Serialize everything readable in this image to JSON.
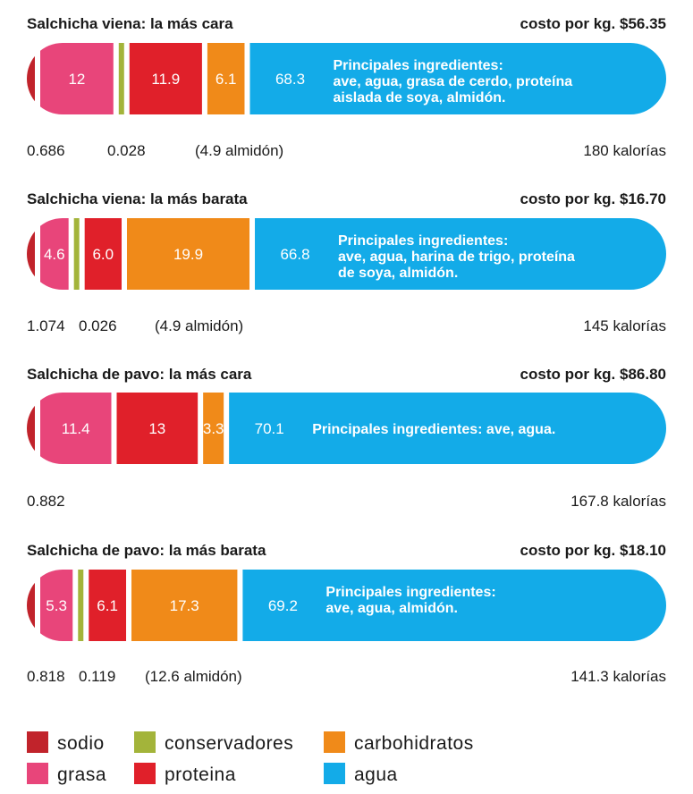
{
  "chart_data": {
    "type": "bar",
    "colors": {
      "sodio": "#c1232b",
      "grasa": "#e8457a",
      "conservadores": "#a3b43a",
      "proteina": "#e0202a",
      "carbohidratos": "#f08a19",
      "agua": "#13abe8"
    },
    "legend": [
      {
        "key": "sodio",
        "label": "sodio"
      },
      {
        "key": "conservadores",
        "label": "conservadores"
      },
      {
        "key": "carbohidratos",
        "label": "carbohidratos"
      },
      {
        "key": "grasa",
        "label": "grasa"
      },
      {
        "key": "proteina",
        "label": "proteina"
      },
      {
        "key": "agua",
        "label": "agua"
      }
    ],
    "bars": [
      {
        "title": "Salchicha viena: la más cara",
        "cost": "costo por kg. $56.35",
        "calories": "180 kalorías",
        "sodio": 0.686,
        "grasa": 12,
        "conservadores": 0.028,
        "proteina": 11.9,
        "carbohidratos": 6.1,
        "agua": 68.3,
        "sodio_label": "0.686",
        "grasa_label": "12",
        "conservadores_label": "0.028",
        "proteina_label": "11.9",
        "carbohidratos_label": "6.1",
        "agua_label": "68.3",
        "carb_note": "(4.9 almidón)",
        "ingredients": [
          "Principales ingredientes:",
          "ave, agua, grasa de cerdo, proteína",
          "aislada de soya, almidón."
        ]
      },
      {
        "title": "Salchicha viena: la más barata",
        "cost": "costo por kg. $16.70",
        "calories": "145 kalorías",
        "sodio": 1.074,
        "grasa": 4.6,
        "conservadores": 0.026,
        "proteina": 6.0,
        "carbohidratos": 19.9,
        "agua": 66.8,
        "sodio_label": "1.074",
        "grasa_label": "4.6",
        "conservadores_label": "0.026",
        "proteina_label": "6.0",
        "carbohidratos_label": "19.9",
        "agua_label": "66.8",
        "carb_note": "(4.9 almidón)",
        "ingredients": [
          "Principales ingredientes:",
          "ave, agua, harina de trigo, proteína",
          "de soya, almidón."
        ]
      },
      {
        "title": "Salchicha de pavo: la más cara",
        "cost": "costo por kg. $86.80",
        "calories": "167.8 kalorías",
        "sodio": 0.882,
        "grasa": 11.4,
        "conservadores": 0,
        "proteina": 13,
        "carbohidratos": 3.3,
        "agua": 70.1,
        "sodio_label": "0.882",
        "grasa_label": "11.4",
        "conservadores_label": "",
        "proteina_label": "13",
        "carbohidratos_label": "3.3",
        "agua_label": "70.1",
        "carb_note": "",
        "ingredients": [
          "Principales ingredientes: ave, agua."
        ]
      },
      {
        "title": "Salchicha de pavo: la más barata",
        "cost": "costo por kg. $18.10",
        "calories": "141.3 kalorías",
        "sodio": 0.818,
        "grasa": 5.3,
        "conservadores": 0.119,
        "proteina": 6.1,
        "carbohidratos": 17.3,
        "agua": 69.2,
        "sodio_label": "0.818",
        "grasa_label": "5.3",
        "conservadores_label": "0.119",
        "proteina_label": "6.1",
        "carbohidratos_label": "17.3",
        "agua_label": "69.2",
        "carb_note": "(12.6 almidón)",
        "ingredients": [
          "Principales ingredientes:",
          "ave, agua, almidón."
        ]
      }
    ]
  }
}
